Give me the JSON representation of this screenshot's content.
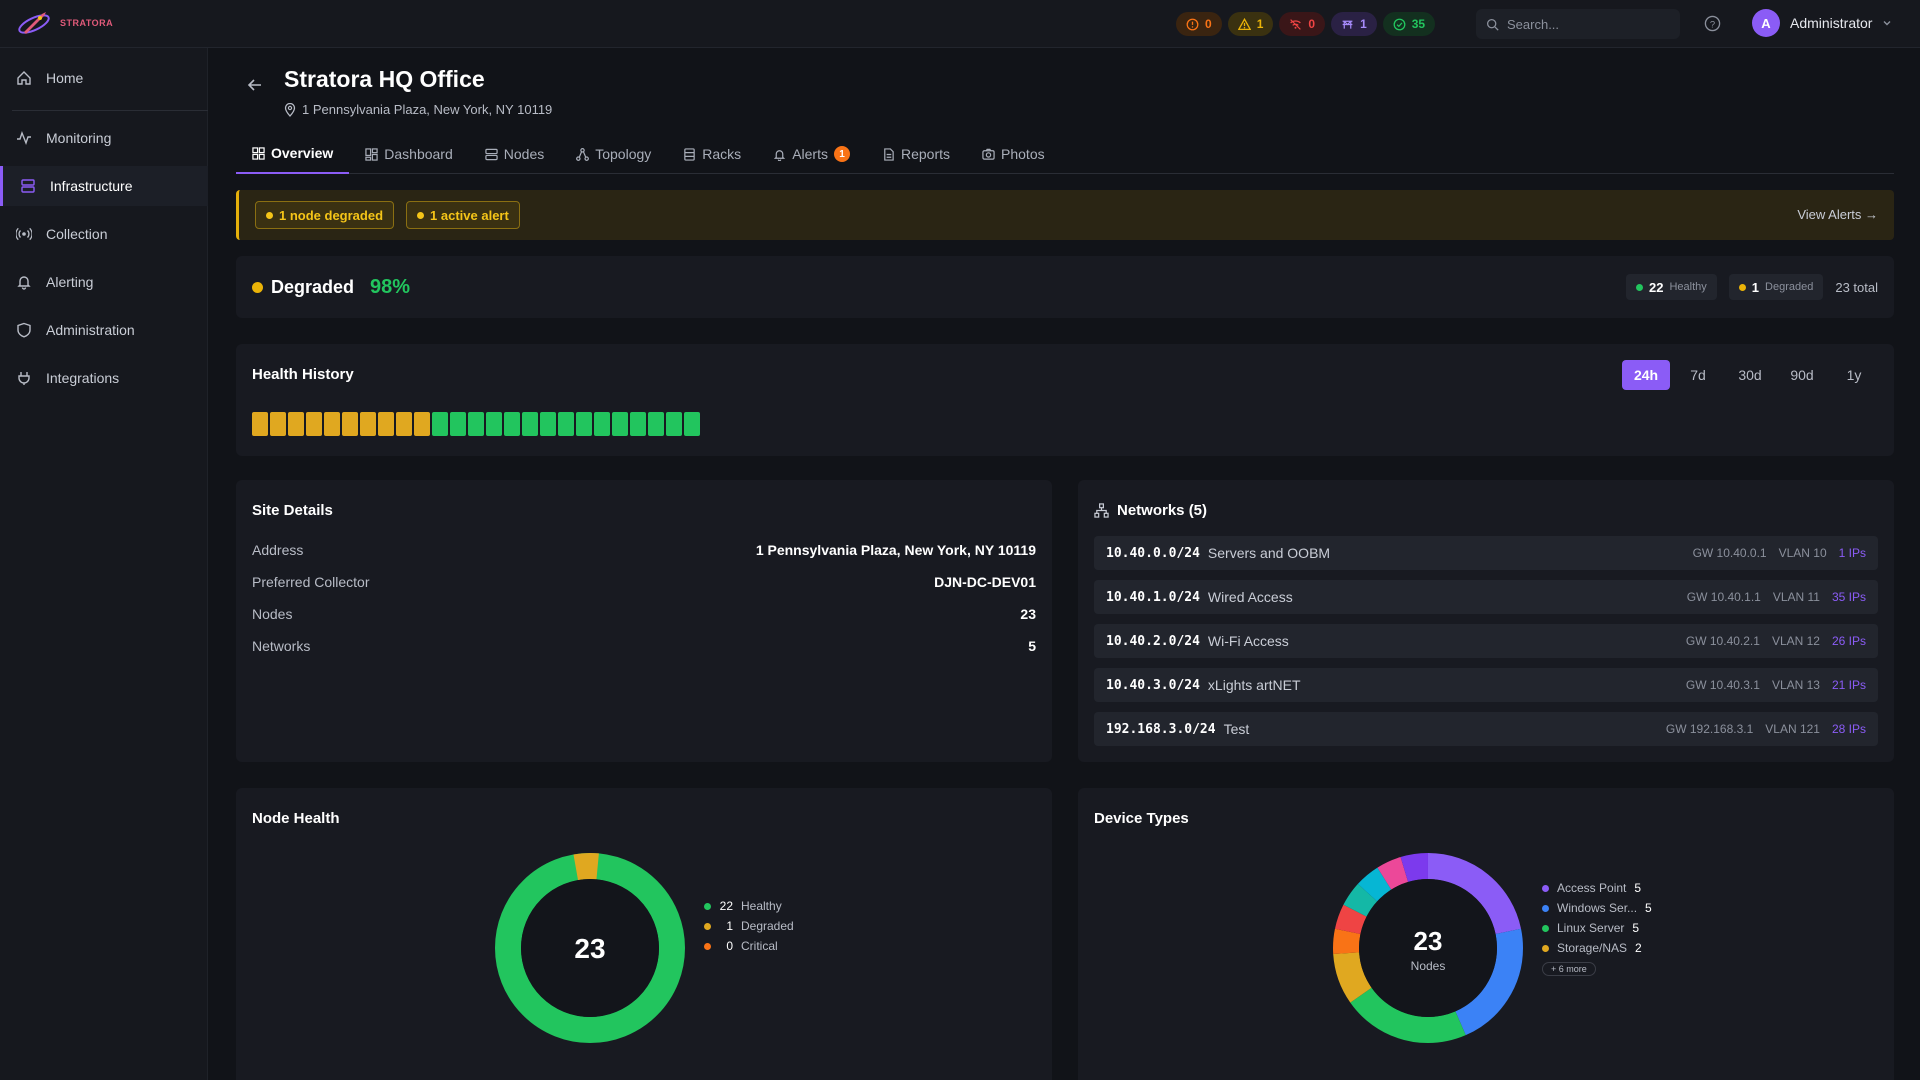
{
  "app": {
    "name": "STRATORA"
  },
  "header": {
    "status_pills": [
      {
        "icon": "alert-circle-icon",
        "count": "0",
        "color": "#f97316",
        "bg": "#3a2410"
      },
      {
        "icon": "warning-icon",
        "count": "1",
        "color": "#eab308",
        "bg": "#3a3110"
      },
      {
        "icon": "disconnect-icon",
        "count": "0",
        "color": "#ef4444",
        "bg": "#3a1618"
      },
      {
        "icon": "maintenance-icon",
        "count": "1",
        "color": "#a78bfa",
        "bg": "#2a2144"
      },
      {
        "icon": "check-circle-icon",
        "count": "35",
        "color": "#22c55e",
        "bg": "#13301f"
      }
    ],
    "search_placeholder": "Search...",
    "user": {
      "initial": "A",
      "name": "Administrator"
    }
  },
  "sidebar": {
    "items": [
      {
        "label": "Home",
        "icon": "home-icon"
      },
      {
        "label": "Monitoring",
        "icon": "activity-icon"
      },
      {
        "label": "Infrastructure",
        "icon": "server-icon",
        "active": true
      },
      {
        "label": "Collection",
        "icon": "broadcast-icon"
      },
      {
        "label": "Alerting",
        "icon": "bell-icon"
      },
      {
        "label": "Administration",
        "icon": "shield-icon"
      },
      {
        "label": "Integrations",
        "icon": "plug-icon"
      }
    ]
  },
  "page": {
    "title": "Stratora HQ Office",
    "address": "1 Pennsylvania Plaza, New York, NY 10119",
    "tabs": [
      {
        "label": "Overview",
        "active": true
      },
      {
        "label": "Dashboard"
      },
      {
        "label": "Nodes"
      },
      {
        "label": "Topology"
      },
      {
        "label": "Racks"
      },
      {
        "label": "Alerts",
        "badge": "1"
      },
      {
        "label": "Reports"
      },
      {
        "label": "Photos"
      }
    ]
  },
  "banner": {
    "chips": [
      "1 node degraded",
      "1 active alert"
    ],
    "link": "View Alerts →"
  },
  "status": {
    "label": "Degraded",
    "percent": "98%",
    "healthy_count": "22",
    "healthy_label": "Healthy",
    "degraded_count": "1",
    "degraded_label": "Degraded",
    "total": "23 total"
  },
  "health_history": {
    "title": "Health History",
    "ranges": [
      "24h",
      "7d",
      "30d",
      "90d",
      "1y"
    ],
    "active_range": "24h",
    "bars": [
      "degraded",
      "degraded",
      "degraded",
      "degraded",
      "degraded",
      "degraded",
      "degraded",
      "degraded",
      "degraded",
      "degraded",
      "healthy",
      "healthy",
      "healthy",
      "healthy",
      "healthy",
      "healthy",
      "healthy",
      "healthy",
      "healthy",
      "healthy",
      "healthy",
      "healthy",
      "healthy",
      "healthy",
      "healthy"
    ],
    "colors": {
      "degraded": "#e0a820",
      "healthy": "#22c55e"
    }
  },
  "site_details": {
    "title": "Site Details",
    "rows": [
      {
        "key": "Address",
        "value": "1 Pennsylvania Plaza, New York, NY 10119"
      },
      {
        "key": "Preferred Collector",
        "value": "DJN-DC-DEV01"
      },
      {
        "key": "Nodes",
        "value": "23"
      },
      {
        "key": "Networks",
        "value": "5"
      }
    ]
  },
  "networks": {
    "title": "Networks (5)",
    "rows": [
      {
        "cidr": "10.40.0.0/24",
        "name": "Servers and OOBM",
        "gw": "GW 10.40.0.1",
        "vlan": "VLAN 10",
        "ips": "1 IPs"
      },
      {
        "cidr": "10.40.1.0/24",
        "name": "Wired Access",
        "gw": "GW 10.40.1.1",
        "vlan": "VLAN 11",
        "ips": "35 IPs"
      },
      {
        "cidr": "10.40.2.0/24",
        "name": "Wi-Fi Access",
        "gw": "GW 10.40.2.1",
        "vlan": "VLAN 12",
        "ips": "26 IPs"
      },
      {
        "cidr": "10.40.3.0/24",
        "name": "xLights artNET",
        "gw": "GW 10.40.3.1",
        "vlan": "VLAN 13",
        "ips": "21 IPs"
      },
      {
        "cidr": "192.168.3.0/24",
        "name": "Test",
        "gw": "GW 192.168.3.1",
        "vlan": "VLAN 121",
        "ips": "28 IPs"
      }
    ]
  },
  "node_health": {
    "title": "Node Health",
    "center": "23",
    "legend": [
      {
        "count": "22",
        "label": "Healthy",
        "color": "#22c55e"
      },
      {
        "count": "1",
        "label": "Degraded",
        "color": "#e0a820"
      },
      {
        "count": "0",
        "label": "Critical",
        "color": "#f97316"
      }
    ]
  },
  "device_types": {
    "title": "Device Types",
    "center": "23",
    "center_label": "Nodes",
    "legend": [
      {
        "label": "Access Point",
        "count": "5",
        "color": "#8b5cf6"
      },
      {
        "label": "Windows Ser...",
        "count": "5",
        "color": "#3b82f6"
      },
      {
        "label": "Linux Server",
        "count": "5",
        "color": "#22c55e"
      },
      {
        "label": "Storage/NAS",
        "count": "2",
        "color": "#e0a820"
      }
    ],
    "more": "+ 6 more"
  }
}
